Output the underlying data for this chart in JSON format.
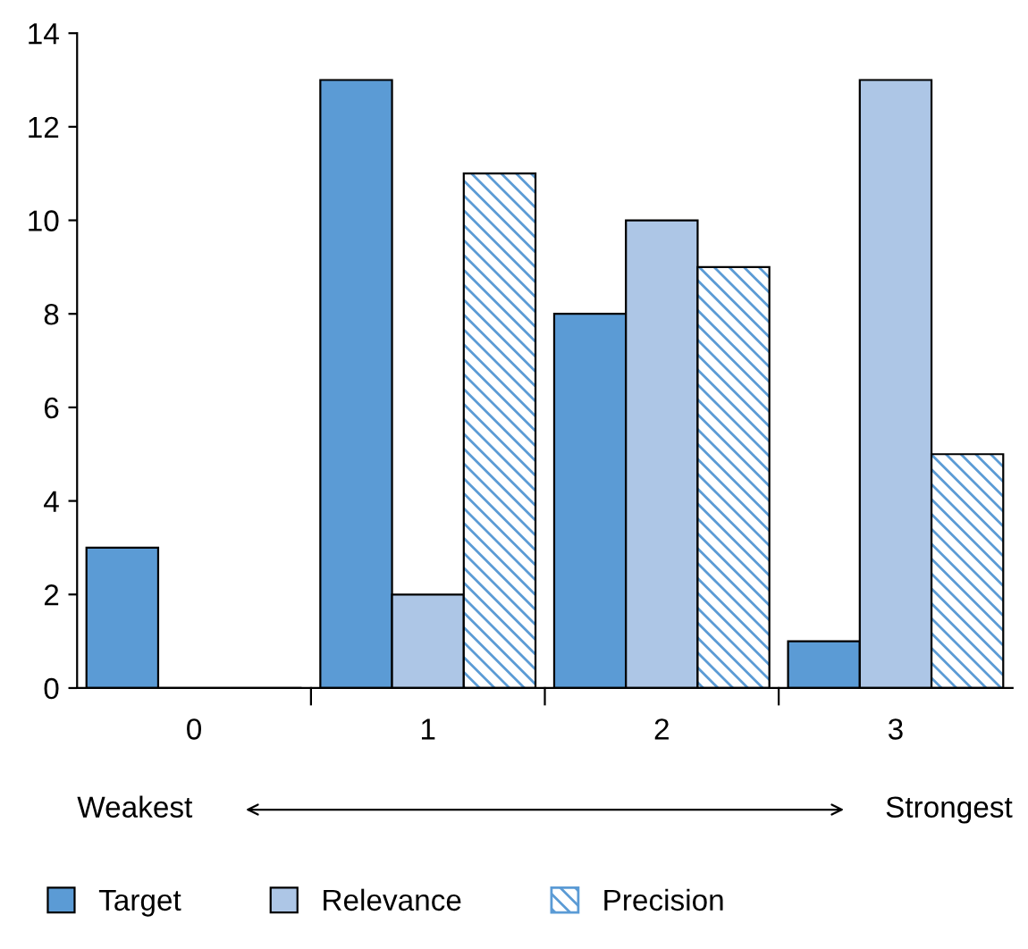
{
  "chart_data": {
    "type": "bar",
    "categories": [
      "0",
      "1",
      "2",
      "3"
    ],
    "series": [
      {
        "name": "Target",
        "color": "#5b9bd5",
        "values": [
          3,
          13,
          8,
          1
        ]
      },
      {
        "name": "Relevance",
        "color": "#adc6e6",
        "values": [
          0,
          2,
          10,
          13
        ]
      },
      {
        "name": "Precision",
        "color": "#5b9bd5",
        "values": [
          0,
          11,
          9,
          5
        ]
      }
    ],
    "ylim": [
      0,
      14
    ],
    "yticks": [
      0,
      2,
      4,
      6,
      8,
      10,
      12,
      14
    ],
    "annotations": [
      "Weakest",
      "Strongest"
    ],
    "grid": false,
    "legend": "bottom"
  }
}
